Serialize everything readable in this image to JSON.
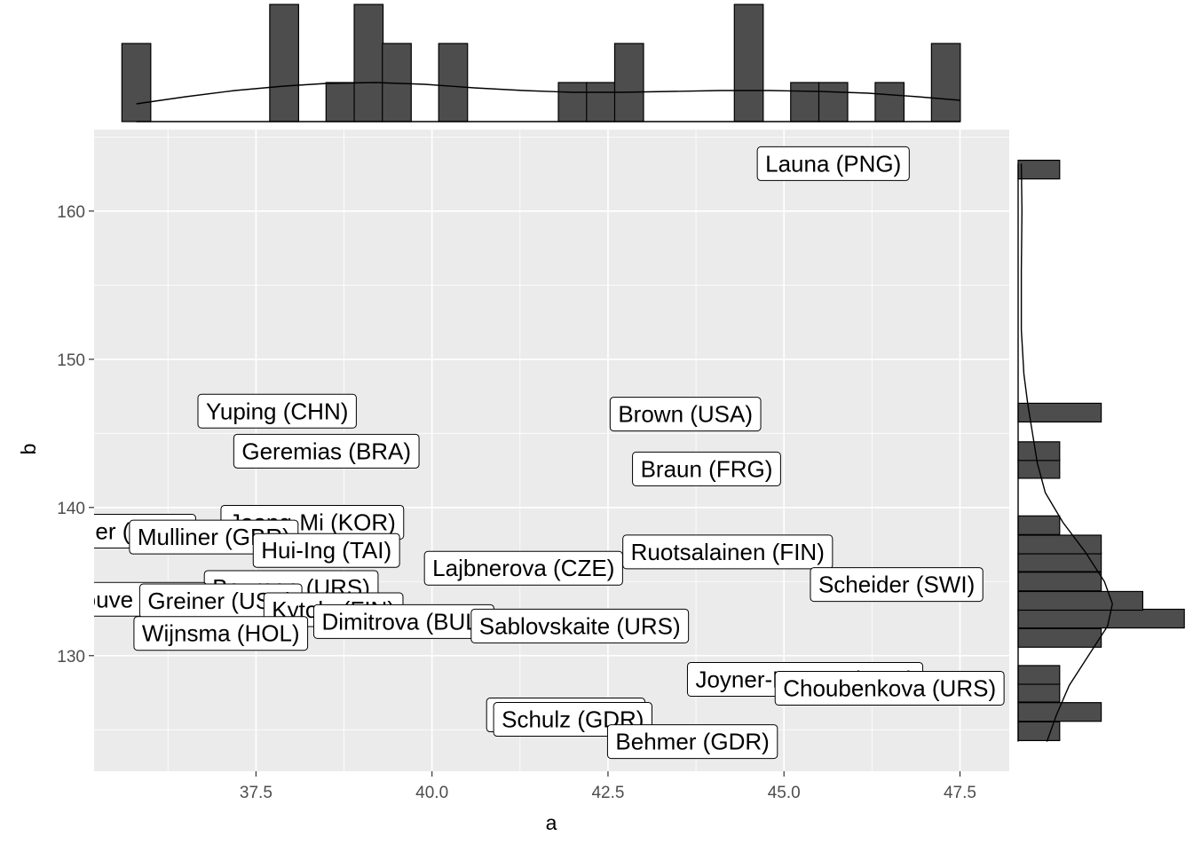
{
  "chart_data": {
    "type": "scatter",
    "title": "",
    "xlabel": "a",
    "ylabel": "b",
    "xlim": [
      35.2,
      48.2
    ],
    "ylim": [
      122.2,
      165.5
    ],
    "x_ticks": [
      37.5,
      40.0,
      42.5,
      45.0,
      47.5
    ],
    "x_tick_labels": [
      "37.5",
      "40.0",
      "42.5",
      "45.0",
      "47.5"
    ],
    "y_ticks": [
      130,
      140,
      150,
      160
    ],
    "y_tick_labels": [
      "130",
      "140",
      "150",
      "160"
    ],
    "grid": true,
    "points": [
      {
        "label": "Launa (PNG)",
        "x": 45.7,
        "y": 163.2
      },
      {
        "label": "Yuping (CHN)",
        "x": 37.8,
        "y": 146.5
      },
      {
        "label": "Brown (USA)",
        "x": 43.6,
        "y": 146.3
      },
      {
        "label": "Geremias (BRA)",
        "x": 38.5,
        "y": 143.8
      },
      {
        "label": "Braun (FRG)",
        "x": 43.9,
        "y": 142.6
      },
      {
        "label": "Jeong-Mi (KOR)",
        "x": 38.3,
        "y": 139.0
      },
      {
        "label": "Fagger (GBR)",
        "x": 35.5,
        "y": 138.4
      },
      {
        "label": "Mulliner (GBR)",
        "x": 36.9,
        "y": 138.0
      },
      {
        "label": "Hui-Ing (TAI)",
        "x": 38.5,
        "y": 137.1
      },
      {
        "label": "Ruotsalainen (FIN)",
        "x": 44.2,
        "y": 137.0
      },
      {
        "label": "Lajbnerova (CZE)",
        "x": 41.3,
        "y": 135.9
      },
      {
        "label": "Bouraga (URS)",
        "x": 38.0,
        "y": 134.6
      },
      {
        "label": "Scheider (SWI)",
        "x": 46.6,
        "y": 134.8
      },
      {
        "label": "Lenaouve (BEL)",
        "x": 35.5,
        "y": 133.8
      },
      {
        "label": "Greiner (USA)",
        "x": 37.0,
        "y": 133.7
      },
      {
        "label": "Kytola (FIN)",
        "x": 38.6,
        "y": 133.1
      },
      {
        "label": "Dimitrova (BUL)",
        "x": 39.6,
        "y": 132.3
      },
      {
        "label": "Sablovskaite (URS)",
        "x": 42.1,
        "y": 132.0
      },
      {
        "label": "Wijnsma (HOL)",
        "x": 37.0,
        "y": 131.5
      },
      {
        "label": "Joyner-Kersee (USA)",
        "x": 45.3,
        "y": 128.4
      },
      {
        "label": "Choubenkova (URS)",
        "x": 46.5,
        "y": 127.8
      },
      {
        "label": "Schulz (GDR)",
        "x": 41.9,
        "y": 126.0
      },
      {
        "label": "Schulz (GDR)",
        "x": 42.0,
        "y": 125.7
      },
      {
        "label": "Behmer (GDR)",
        "x": 43.7,
        "y": 124.2
      }
    ],
    "top_histogram": {
      "bin_width": 0.41,
      "bins": [
        {
          "x": 35.8,
          "count": 2
        },
        {
          "x": 37.9,
          "count": 3
        },
        {
          "x": 38.7,
          "count": 1
        },
        {
          "x": 39.1,
          "count": 3
        },
        {
          "x": 39.5,
          "count": 2
        },
        {
          "x": 40.3,
          "count": 2
        },
        {
          "x": 42.0,
          "count": 1
        },
        {
          "x": 42.4,
          "count": 1
        },
        {
          "x": 42.8,
          "count": 2
        },
        {
          "x": 44.5,
          "count": 3
        },
        {
          "x": 45.3,
          "count": 1
        },
        {
          "x": 45.7,
          "count": 1
        },
        {
          "x": 46.5,
          "count": 1
        },
        {
          "x": 47.3,
          "count": 2
        }
      ],
      "density": [
        {
          "x": 35.8,
          "v": 0.2
        },
        {
          "x": 36.5,
          "v": 0.28
        },
        {
          "x": 37.2,
          "v": 0.35
        },
        {
          "x": 37.9,
          "v": 0.4
        },
        {
          "x": 38.5,
          "v": 0.43
        },
        {
          "x": 39.2,
          "v": 0.44
        },
        {
          "x": 39.9,
          "v": 0.42
        },
        {
          "x": 40.6,
          "v": 0.38
        },
        {
          "x": 41.3,
          "v": 0.35
        },
        {
          "x": 42.0,
          "v": 0.33
        },
        {
          "x": 42.7,
          "v": 0.33
        },
        {
          "x": 43.4,
          "v": 0.34
        },
        {
          "x": 44.1,
          "v": 0.35
        },
        {
          "x": 44.8,
          "v": 0.35
        },
        {
          "x": 45.5,
          "v": 0.34
        },
        {
          "x": 46.2,
          "v": 0.32
        },
        {
          "x": 46.9,
          "v": 0.28
        },
        {
          "x": 47.5,
          "v": 0.24
        }
      ]
    },
    "right_histogram": {
      "bin_width": 1.26,
      "bins": [
        {
          "y": 124.9,
          "count": 1
        },
        {
          "y": 126.2,
          "count": 2
        },
        {
          "y": 127.5,
          "count": 1
        },
        {
          "y": 128.7,
          "count": 1
        },
        {
          "y": 131.2,
          "count": 2
        },
        {
          "y": 132.5,
          "count": 4
        },
        {
          "y": 133.7,
          "count": 3
        },
        {
          "y": 135.0,
          "count": 2
        },
        {
          "y": 136.3,
          "count": 2
        },
        {
          "y": 137.5,
          "count": 2
        },
        {
          "y": 138.8,
          "count": 1
        },
        {
          "y": 142.6,
          "count": 1
        },
        {
          "y": 143.8,
          "count": 1
        },
        {
          "y": 146.4,
          "count": 2
        },
        {
          "y": 162.8,
          "count": 1
        }
      ],
      "density": [
        {
          "y": 124.2,
          "v": 0.9
        },
        {
          "y": 126.0,
          "v": 1.2
        },
        {
          "y": 128.0,
          "v": 1.6
        },
        {
          "y": 130.0,
          "v": 2.2
        },
        {
          "y": 132.0,
          "v": 2.8
        },
        {
          "y": 133.5,
          "v": 2.95
        },
        {
          "y": 135.0,
          "v": 2.7
        },
        {
          "y": 137.0,
          "v": 2.1
        },
        {
          "y": 139.0,
          "v": 1.4
        },
        {
          "y": 141.0,
          "v": 0.85
        },
        {
          "y": 143.0,
          "v": 0.6
        },
        {
          "y": 145.0,
          "v": 0.45
        },
        {
          "y": 147.0,
          "v": 0.3
        },
        {
          "y": 149.0,
          "v": 0.18
        },
        {
          "y": 152.0,
          "v": 0.1
        },
        {
          "y": 156.0,
          "v": 0.1
        },
        {
          "y": 160.0,
          "v": 0.12
        },
        {
          "y": 163.2,
          "v": 0.1
        }
      ]
    }
  }
}
